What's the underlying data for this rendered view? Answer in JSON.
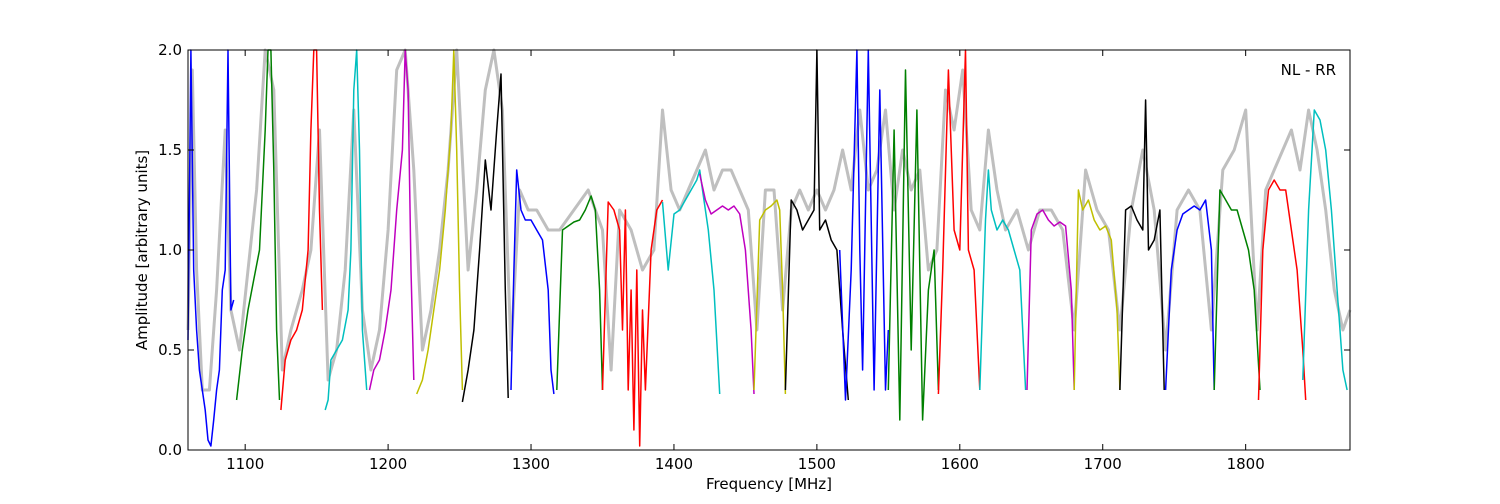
{
  "chart_data": {
    "type": "line",
    "xlabel": "Frequency [MHz]",
    "ylabel": "Amplitude [arbitrary units]",
    "annotation": "NL - RR",
    "xlim": [
      1060,
      1873
    ],
    "ylim": [
      0.0,
      2.0
    ],
    "xticks": [
      {
        "value": 1100,
        "label": "1100"
      },
      {
        "value": 1200,
        "label": "1200"
      },
      {
        "value": 1300,
        "label": "1300"
      },
      {
        "value": 1400,
        "label": "1400"
      },
      {
        "value": 1500,
        "label": "1500"
      },
      {
        "value": 1600,
        "label": "1600"
      },
      {
        "value": 1700,
        "label": "1700"
      },
      {
        "value": 1800,
        "label": "1800"
      }
    ],
    "yticks": [
      {
        "value": 0.0,
        "label": "0.0"
      },
      {
        "value": 0.5,
        "label": "0.5"
      },
      {
        "value": 1.0,
        "label": "1.0"
      },
      {
        "value": 1.5,
        "label": "1.5"
      },
      {
        "value": 2.0,
        "label": "2.0"
      }
    ],
    "grid": false,
    "background_series": {
      "color": "#bfbfbf",
      "x": [
        1060,
        1063,
        1066,
        1070,
        1075,
        1080,
        1086,
        1090,
        1096,
        1102,
        1108,
        1114,
        1120,
        1126,
        1132,
        1140,
        1146,
        1152,
        1158,
        1164,
        1170,
        1176,
        1182,
        1188,
        1194,
        1200,
        1206,
        1212,
        1218,
        1224,
        1230,
        1236,
        1242,
        1248,
        1256,
        1262,
        1268,
        1274,
        1280,
        1286,
        1292,
        1298,
        1304,
        1312,
        1320,
        1330,
        1340,
        1350,
        1356,
        1362,
        1370,
        1378,
        1386,
        1392,
        1398,
        1404,
        1410,
        1416,
        1422,
        1428,
        1434,
        1440,
        1446,
        1452,
        1458,
        1464,
        1470,
        1476,
        1482,
        1488,
        1494,
        1500,
        1506,
        1512,
        1518,
        1524,
        1530,
        1536,
        1542,
        1548,
        1554,
        1560,
        1566,
        1572,
        1578,
        1584,
        1590,
        1596,
        1602,
        1608,
        1614,
        1620,
        1626,
        1632,
        1640,
        1648,
        1656,
        1664,
        1672,
        1680,
        1688,
        1696,
        1704,
        1712,
        1720,
        1728,
        1736,
        1744,
        1752,
        1760,
        1768,
        1776,
        1784,
        1792,
        1800,
        1808,
        1814,
        1820,
        1826,
        1832,
        1838,
        1844,
        1850,
        1856,
        1862,
        1868,
        1873
      ],
      "y": [
        0.6,
        1.9,
        0.9,
        0.3,
        0.3,
        0.8,
        1.6,
        0.7,
        0.5,
        0.9,
        1.3,
        2.0,
        1.8,
        0.4,
        0.6,
        0.8,
        1.0,
        1.6,
        0.35,
        0.5,
        0.9,
        1.7,
        0.7,
        0.4,
        0.6,
        1.1,
        1.9,
        2.0,
        1.4,
        0.5,
        0.7,
        1.0,
        1.4,
        2.0,
        0.9,
        1.3,
        1.8,
        2.0,
        1.7,
        0.5,
        1.3,
        1.2,
        1.2,
        1.1,
        1.1,
        1.2,
        1.3,
        1.1,
        0.4,
        1.2,
        1.1,
        0.9,
        1.0,
        1.7,
        1.3,
        1.2,
        1.3,
        1.4,
        1.5,
        1.3,
        1.4,
        1.4,
        1.3,
        1.2,
        0.6,
        1.3,
        1.3,
        0.7,
        1.2,
        1.3,
        1.2,
        1.3,
        1.2,
        1.3,
        1.5,
        1.3,
        1.7,
        1.3,
        1.4,
        1.7,
        1.2,
        1.5,
        1.3,
        1.4,
        0.9,
        1.0,
        1.8,
        1.6,
        1.9,
        1.2,
        1.1,
        1.6,
        1.3,
        1.1,
        1.2,
        1.0,
        1.2,
        1.2,
        1.1,
        0.6,
        1.4,
        1.2,
        1.1,
        0.6,
        1.2,
        1.5,
        1.2,
        0.5,
        1.2,
        1.3,
        1.2,
        0.6,
        1.4,
        1.5,
        1.7,
        0.6,
        1.3,
        1.4,
        1.5,
        1.6,
        1.4,
        1.7,
        1.5,
        1.2,
        0.8,
        0.6,
        0.7
      ]
    },
    "series": [
      {
        "color": "#0000ff",
        "x": [
          1060,
          1062,
          1064,
          1066,
          1068,
          1070,
          1072,
          1074,
          1076,
          1078,
          1080,
          1082,
          1084,
          1086,
          1088,
          1090,
          1092
        ],
        "y": [
          0.55,
          2.0,
          0.9,
          0.6,
          0.4,
          0.3,
          0.2,
          0.05,
          0.02,
          0.15,
          0.3,
          0.4,
          0.8,
          0.9,
          2.0,
          0.7,
          0.75
        ]
      },
      {
        "color": "#008000",
        "x": [
          1094,
          1098,
          1102,
          1106,
          1110,
          1114,
          1116,
          1118,
          1120,
          1122,
          1124
        ],
        "y": [
          0.25,
          0.5,
          0.7,
          0.85,
          1.0,
          1.6,
          2.0,
          2.0,
          1.4,
          0.6,
          0.25
        ]
      },
      {
        "color": "#ff0000",
        "x": [
          1125,
          1128,
          1132,
          1136,
          1140,
          1144,
          1146,
          1148,
          1150,
          1152,
          1154
        ],
        "y": [
          0.2,
          0.45,
          0.55,
          0.6,
          0.7,
          1.0,
          1.6,
          2.0,
          2.0,
          1.2,
          0.7
        ]
      },
      {
        "color": "#00bfbf",
        "x": [
          1156,
          1158,
          1160,
          1164,
          1168,
          1172,
          1174,
          1176,
          1178,
          1180,
          1182,
          1185
        ],
        "y": [
          0.2,
          0.25,
          0.45,
          0.5,
          0.55,
          0.7,
          1.0,
          1.8,
          2.0,
          1.5,
          0.6,
          0.3
        ]
      },
      {
        "color": "#bf00bf",
        "x": [
          1187,
          1190,
          1194,
          1198,
          1202,
          1206,
          1210,
          1212,
          1214,
          1216,
          1218
        ],
        "y": [
          0.3,
          0.4,
          0.45,
          0.6,
          0.8,
          1.2,
          1.5,
          2.0,
          1.8,
          0.9,
          0.35
        ]
      },
      {
        "color": "#bfbf00",
        "x": [
          1220,
          1224,
          1228,
          1232,
          1236,
          1240,
          1244,
          1246,
          1248,
          1250,
          1252
        ],
        "y": [
          0.28,
          0.35,
          0.5,
          0.7,
          0.9,
          1.2,
          1.6,
          2.0,
          1.5,
          0.8,
          0.3
        ]
      },
      {
        "color": "#000000",
        "x": [
          1252,
          1256,
          1260,
          1264,
          1268,
          1272,
          1276,
          1279,
          1282,
          1284
        ],
        "y": [
          0.24,
          0.4,
          0.6,
          1.0,
          1.45,
          1.2,
          1.6,
          1.88,
          0.8,
          0.26
        ]
      },
      {
        "color": "#0000ff",
        "x": [
          1286,
          1288,
          1290,
          1293,
          1296,
          1300,
          1304,
          1308,
          1312,
          1314,
          1316
        ],
        "y": [
          0.3,
          0.9,
          1.4,
          1.2,
          1.15,
          1.15,
          1.1,
          1.05,
          0.8,
          0.4,
          0.28
        ]
      },
      {
        "color": "#008000",
        "x": [
          1318,
          1322,
          1326,
          1330,
          1334,
          1338,
          1342,
          1345,
          1348,
          1350
        ],
        "y": [
          0.3,
          1.1,
          1.12,
          1.14,
          1.15,
          1.2,
          1.27,
          1.2,
          0.8,
          0.3
        ]
      },
      {
        "color": "#ff0000",
        "x": [
          1350,
          1354,
          1358,
          1362,
          1364,
          1366,
          1368,
          1370,
          1372,
          1374,
          1376,
          1378,
          1380,
          1384,
          1388,
          1392
        ],
        "y": [
          0.3,
          1.24,
          1.2,
          1.1,
          0.6,
          1.2,
          0.3,
          0.8,
          0.1,
          0.9,
          0.02,
          0.7,
          0.3,
          1.0,
          1.2,
          1.25
        ]
      },
      {
        "color": "#00bfbf",
        "x": [
          1392,
          1396,
          1400,
          1404,
          1408,
          1412,
          1416,
          1418,
          1420,
          1424,
          1428,
          1432
        ],
        "y": [
          1.24,
          0.9,
          1.18,
          1.2,
          1.25,
          1.3,
          1.35,
          1.4,
          1.3,
          1.1,
          0.8,
          0.28
        ]
      },
      {
        "color": "#bf00bf",
        "x": [
          1418,
          1422,
          1426,
          1430,
          1434,
          1438,
          1442,
          1446,
          1450,
          1454,
          1456
        ],
        "y": [
          1.38,
          1.25,
          1.18,
          1.2,
          1.22,
          1.2,
          1.22,
          1.18,
          1.0,
          0.6,
          0.28
        ]
      },
      {
        "color": "#bfbf00",
        "x": [
          1456,
          1460,
          1464,
          1468,
          1472,
          1474,
          1476,
          1478
        ],
        "y": [
          0.3,
          1.15,
          1.2,
          1.22,
          1.25,
          1.2,
          0.8,
          0.28
        ]
      },
      {
        "color": "#000000",
        "x": [
          1478,
          1482,
          1486,
          1490,
          1494,
          1498,
          1500,
          1502,
          1506,
          1510,
          1514,
          1518,
          1522
        ],
        "y": [
          0.3,
          1.25,
          1.2,
          1.1,
          1.15,
          1.2,
          2.0,
          1.1,
          1.15,
          1.05,
          1.0,
          0.6,
          0.25
        ]
      },
      {
        "color": "#0000ff",
        "x": [
          1516,
          1520,
          1524,
          1528,
          1530,
          1532,
          1536,
          1540,
          1544,
          1548,
          1550
        ],
        "y": [
          1.0,
          0.25,
          0.9,
          2.0,
          1.0,
          0.4,
          2.0,
          0.3,
          1.8,
          0.3,
          0.6
        ]
      },
      {
        "color": "#008000",
        "x": [
          1550,
          1554,
          1558,
          1562,
          1566,
          1570,
          1574,
          1578,
          1582,
          1585
        ],
        "y": [
          0.3,
          1.6,
          0.15,
          1.9,
          0.5,
          1.7,
          0.15,
          0.8,
          1.0,
          0.3
        ]
      },
      {
        "color": "#ff0000",
        "x": [
          1585,
          1588,
          1592,
          1596,
          1600,
          1604,
          1606,
          1610,
          1614
        ],
        "y": [
          0.28,
          0.9,
          1.9,
          1.1,
          1.0,
          2.0,
          1.0,
          0.9,
          0.3
        ]
      },
      {
        "color": "#00bfbf",
        "x": [
          1614,
          1618,
          1620,
          1622,
          1626,
          1630,
          1634,
          1638,
          1642,
          1646
        ],
        "y": [
          0.3,
          1.15,
          1.4,
          1.2,
          1.1,
          1.15,
          1.1,
          1.0,
          0.9,
          0.3
        ]
      },
      {
        "color": "#bf00bf",
        "x": [
          1647,
          1650,
          1654,
          1658,
          1662,
          1666,
          1670,
          1674,
          1678,
          1680
        ],
        "y": [
          0.3,
          1.1,
          1.18,
          1.2,
          1.15,
          1.12,
          1.14,
          1.12,
          0.8,
          0.3
        ]
      },
      {
        "color": "#bfbf00",
        "x": [
          1680,
          1683,
          1686,
          1690,
          1694,
          1698,
          1702,
          1706,
          1710,
          1712
        ],
        "y": [
          0.3,
          1.3,
          1.2,
          1.25,
          1.15,
          1.1,
          1.12,
          1.05,
          0.7,
          0.3
        ]
      },
      {
        "color": "#000000",
        "x": [
          1712,
          1716,
          1720,
          1724,
          1728,
          1730,
          1732,
          1736,
          1740,
          1743
        ],
        "y": [
          0.3,
          1.2,
          1.22,
          1.15,
          1.1,
          1.75,
          1.0,
          1.05,
          1.2,
          0.3
        ]
      },
      {
        "color": "#0000ff",
        "x": [
          1744,
          1748,
          1752,
          1756,
          1760,
          1764,
          1768,
          1772,
          1776,
          1778
        ],
        "y": [
          0.3,
          0.9,
          1.1,
          1.18,
          1.2,
          1.22,
          1.2,
          1.25,
          1.0,
          0.3
        ]
      },
      {
        "color": "#008000",
        "x": [
          1778,
          1782,
          1786,
          1790,
          1794,
          1798,
          1802,
          1806,
          1810
        ],
        "y": [
          0.3,
          1.3,
          1.25,
          1.2,
          1.2,
          1.1,
          1.0,
          0.8,
          0.3
        ]
      },
      {
        "color": "#ff0000",
        "x": [
          1809,
          1812,
          1816,
          1820,
          1824,
          1828,
          1832,
          1836,
          1840,
          1842
        ],
        "y": [
          0.25,
          1.0,
          1.3,
          1.35,
          1.3,
          1.3,
          1.1,
          0.9,
          0.5,
          0.25
        ]
      },
      {
        "color": "#00bfbf",
        "x": [
          1840,
          1844,
          1848,
          1852,
          1856,
          1860,
          1864,
          1868,
          1871
        ],
        "y": [
          0.35,
          1.2,
          1.7,
          1.65,
          1.5,
          1.2,
          0.8,
          0.4,
          0.3
        ]
      }
    ]
  }
}
